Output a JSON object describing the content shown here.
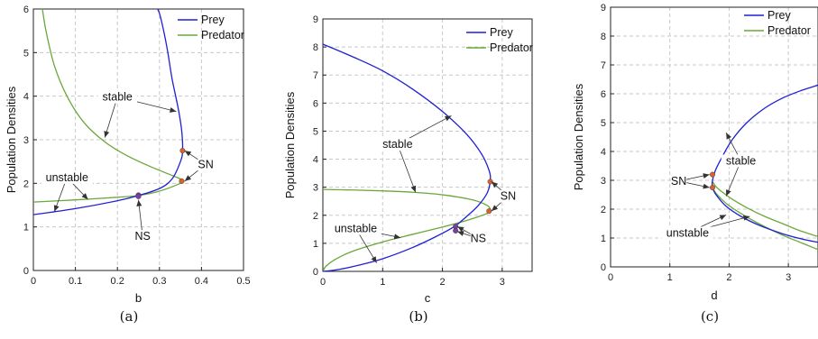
{
  "colors": {
    "prey": "#1f1fd6",
    "predator": "#6aa83a",
    "sn_marker": "#d9622b",
    "ns_marker": "#7a3fa0",
    "grid": "#c8c8c8"
  },
  "chart_data": [
    {
      "type": "line",
      "caption": "(a)",
      "xlabel": "b",
      "ylabel": "Population Densities",
      "xlim": [
        0,
        0.5
      ],
      "ylim": [
        0,
        6
      ],
      "xticks": [
        "0",
        "0.1",
        "0.2",
        "0.3",
        "0.4",
        "0.5"
      ],
      "yticks": [
        "0",
        "1",
        "2",
        "3",
        "4",
        "5",
        "6"
      ],
      "grid": true,
      "legend_position": "top-right",
      "series": [
        {
          "name": "Prey",
          "x": [
            0,
            0.1,
            0.2,
            0.25,
            0.3,
            0.33,
            0.35,
            0.355,
            0.353,
            0.345,
            0.33,
            0.32,
            0.31,
            0.3,
            0.29
          ],
          "y": [
            1.28,
            1.42,
            1.6,
            1.72,
            1.88,
            2.1,
            2.5,
            2.75,
            3.2,
            3.7,
            4.4,
            5.0,
            5.5,
            5.9,
            6.1
          ]
        },
        {
          "name": "Predator",
          "x": [
            0.02,
            0.03,
            0.05,
            0.08,
            0.12,
            0.17,
            0.22,
            0.27,
            0.32,
            0.35,
            0.355,
            0.35,
            0.3,
            0.25,
            0.2,
            0.1,
            0.0
          ],
          "y": [
            6.1,
            5.5,
            4.7,
            4.0,
            3.4,
            2.95,
            2.65,
            2.42,
            2.22,
            2.1,
            2.05,
            2.0,
            1.82,
            1.72,
            1.68,
            1.62,
            1.57
          ]
        }
      ],
      "points": [
        {
          "label": "SN",
          "kind": "sn",
          "x": 0.355,
          "y": 2.75
        },
        {
          "label": "SN",
          "kind": "sn",
          "x": 0.353,
          "y": 2.05
        },
        {
          "label": "NS",
          "kind": "ns",
          "x": 0.25,
          "y": 1.73
        },
        {
          "label": "NS",
          "kind": "ns",
          "x": 0.25,
          "y": 1.7
        }
      ],
      "annotations": [
        {
          "text": "stable",
          "x": 0.2,
          "y": 3.9,
          "targets": [
            [
              0.34,
              3.65
            ],
            [
              0.17,
              3.05
            ]
          ]
        },
        {
          "text": "unstable",
          "x": 0.08,
          "y": 2.05,
          "targets": [
            [
              0.05,
              1.35
            ],
            [
              0.13,
              1.63
            ]
          ]
        },
        {
          "text": "SN",
          "x": 0.41,
          "y": 2.35,
          "targets": [
            [
              0.36,
              2.75
            ],
            [
              0.36,
              2.05
            ]
          ]
        },
        {
          "text": "NS",
          "x": 0.26,
          "y": 0.7,
          "targets": [
            [
              0.25,
              1.62
            ]
          ]
        }
      ]
    },
    {
      "type": "line",
      "caption": "(b)",
      "xlabel": "c",
      "ylabel": "Population Densities",
      "xlim": [
        0,
        3.5
      ],
      "ylim": [
        0,
        9
      ],
      "xticks": [
        "0",
        "1",
        "2",
        "3"
      ],
      "yticks": [
        "0",
        "1",
        "2",
        "3",
        "4",
        "5",
        "6",
        "7",
        "8",
        "9"
      ],
      "grid": true,
      "legend_position": "top-right",
      "series": [
        {
          "name": "Prey",
          "x": [
            0,
            0.5,
            1.0,
            1.5,
            2.0,
            2.4,
            2.65,
            2.78,
            2.8,
            2.75,
            2.6,
            2.4,
            2.2,
            1.9,
            1.5,
            1.0,
            0.6,
            0.3,
            0.1,
            0.0
          ],
          "y": [
            8.1,
            7.65,
            7.15,
            6.5,
            5.7,
            4.9,
            4.2,
            3.6,
            3.25,
            2.8,
            2.35,
            1.95,
            1.6,
            1.25,
            0.85,
            0.45,
            0.22,
            0.08,
            0.02,
            0.0
          ]
        },
        {
          "name": "Predator",
          "x": [
            0,
            0.5,
            1.0,
            1.5,
            2.0,
            2.5,
            2.75,
            2.8,
            2.78,
            2.6,
            2.3,
            2.0,
            1.5,
            1.0,
            0.5,
            0.2,
            0.05,
            0.0
          ],
          "y": [
            2.92,
            2.9,
            2.87,
            2.82,
            2.73,
            2.55,
            2.35,
            2.2,
            2.1,
            1.95,
            1.75,
            1.58,
            1.32,
            1.05,
            0.72,
            0.42,
            0.18,
            0.0
          ]
        }
      ],
      "points": [
        {
          "label": "SN",
          "kind": "sn",
          "x": 2.8,
          "y": 3.2
        },
        {
          "label": "SN",
          "kind": "sn",
          "x": 2.78,
          "y": 2.15
        },
        {
          "label": "NS",
          "kind": "ns",
          "x": 2.22,
          "y": 1.6
        },
        {
          "label": "NS",
          "kind": "ns",
          "x": 2.22,
          "y": 1.45
        }
      ],
      "annotations": [
        {
          "text": "stable",
          "x": 1.25,
          "y": 4.4,
          "targets": [
            [
              2.15,
              5.55
            ],
            [
              1.55,
              2.82
            ]
          ]
        },
        {
          "text": "unstable",
          "x": 0.55,
          "y": 1.4,
          "targets": [
            [
              1.3,
              1.2
            ],
            [
              0.9,
              0.3
            ]
          ]
        },
        {
          "text": "SN",
          "x": 3.1,
          "y": 2.55,
          "targets": [
            [
              2.82,
              3.2
            ],
            [
              2.82,
              2.15
            ]
          ]
        },
        {
          "text": "NS",
          "x": 2.6,
          "y": 1.05,
          "targets": [
            [
              2.25,
              1.6
            ],
            [
              2.25,
              1.42
            ]
          ]
        }
      ]
    },
    {
      "type": "line",
      "caption": "(c)",
      "xlabel": "d",
      "ylabel": "Population Densities",
      "xlim": [
        0,
        3.5
      ],
      "ylim": [
        0,
        9
      ],
      "xticks": [
        "0",
        "1",
        "2",
        "3"
      ],
      "yticks": [
        "0",
        "1",
        "2",
        "3",
        "4",
        "5",
        "6",
        "7",
        "8",
        "9"
      ],
      "grid": true,
      "legend_position": "top-right",
      "series": [
        {
          "name": "Prey",
          "x": [
            3.5,
            3.2,
            2.9,
            2.6,
            2.3,
            2.05,
            1.88,
            1.77,
            1.72,
            1.72,
            1.78,
            1.95,
            2.2,
            2.5,
            2.9,
            3.2,
            3.5
          ],
          "y": [
            6.3,
            6.1,
            5.85,
            5.5,
            5.0,
            4.4,
            3.8,
            3.35,
            3.0,
            2.75,
            2.5,
            2.1,
            1.75,
            1.45,
            1.15,
            0.98,
            0.85
          ]
        },
        {
          "name": "Predator",
          "x": [
            3.5,
            3.2,
            2.9,
            2.6,
            2.3,
            2.05,
            1.88,
            1.77,
            1.72,
            1.72,
            1.78,
            1.95,
            2.2,
            2.5,
            2.9,
            3.2,
            3.5
          ],
          "y": [
            1.05,
            1.25,
            1.5,
            1.75,
            2.05,
            2.35,
            2.6,
            2.8,
            2.95,
            2.78,
            2.55,
            2.2,
            1.85,
            1.5,
            1.1,
            0.85,
            0.6
          ]
        }
      ],
      "points": [
        {
          "label": "SN",
          "kind": "sn",
          "x": 1.72,
          "y": 3.2
        },
        {
          "label": "SN",
          "kind": "sn",
          "x": 1.72,
          "y": 2.75
        }
      ],
      "annotations": [
        {
          "text": "stable",
          "x": 2.2,
          "y": 3.55,
          "targets": [
            [
              1.95,
              4.65
            ],
            [
              1.95,
              2.45
            ]
          ]
        },
        {
          "text": "unstable",
          "x": 1.3,
          "y": 1.05,
          "targets": [
            [
              1.95,
              1.8
            ],
            [
              2.35,
              1.75
            ]
          ]
        },
        {
          "text": "SN",
          "x": 1.15,
          "y": 2.85,
          "targets": [
            [
              1.67,
              3.2
            ],
            [
              1.67,
              2.75
            ]
          ]
        }
      ]
    }
  ]
}
